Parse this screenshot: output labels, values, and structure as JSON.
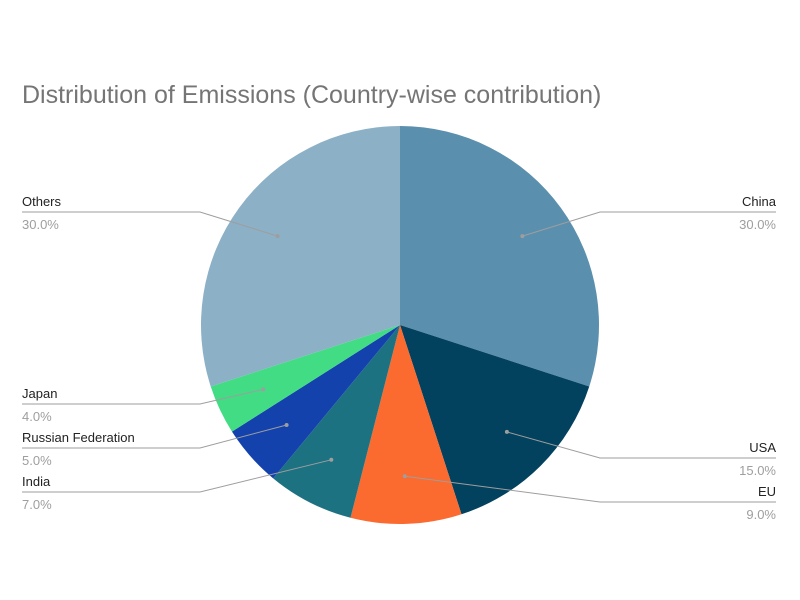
{
  "chart_data": {
    "type": "pie",
    "title": "Distribution of Emissions (Country-wise contribution)",
    "slices": [
      {
        "label": "China",
        "value": 30.0,
        "display": "30.0%",
        "color": "#5b8fae"
      },
      {
        "label": "USA",
        "value": 15.0,
        "display": "15.0%",
        "color": "#03425e"
      },
      {
        "label": "EU",
        "value": 9.0,
        "display": "9.0%",
        "color": "#fb6a2e"
      },
      {
        "label": "India",
        "value": 7.0,
        "display": "7.0%",
        "color": "#1d7282"
      },
      {
        "label": "Russian Federation",
        "value": 5.0,
        "display": "5.0%",
        "color": "#1342ad"
      },
      {
        "label": "Japan",
        "value": 4.0,
        "display": "4.0%",
        "color": "#41dc83"
      },
      {
        "label": "Others",
        "value": 30.0,
        "display": "30.0%",
        "color": "#8cb0c6"
      }
    ]
  }
}
